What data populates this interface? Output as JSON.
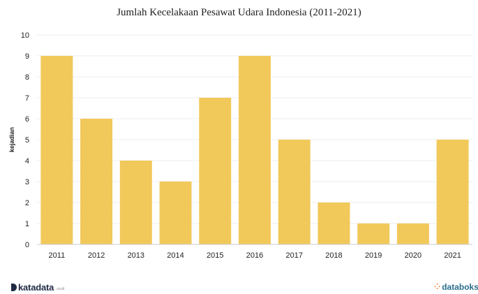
{
  "chart_data": {
    "type": "bar",
    "title": "Jumlah Kecelakaan Pesawat Udara Indonesia (2011-2021)",
    "xlabel": "",
    "ylabel": "kejadian",
    "categories": [
      "2011",
      "2012",
      "2013",
      "2014",
      "2015",
      "2016",
      "2017",
      "2018",
      "2019",
      "2020",
      "2021"
    ],
    "values": [
      9,
      6,
      4,
      3,
      7,
      9,
      5,
      2,
      1,
      1,
      5
    ],
    "ylim": [
      0,
      10
    ],
    "yticks": [
      "0",
      "1",
      "2",
      "3",
      "4",
      "5",
      "6",
      "7",
      "8",
      "9",
      "10"
    ],
    "grid": true,
    "legend": "none",
    "bar_color": "#f1c85a"
  },
  "branding": {
    "left_name": "katadata",
    "left_sub": ".co.id",
    "right_name": "databoks",
    "left_color": "#1f2a44",
    "right_color": "#2a6f8f",
    "right_accent": "#e8772e"
  }
}
